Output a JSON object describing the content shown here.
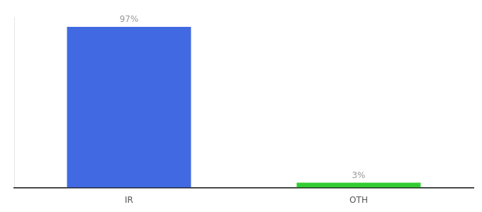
{
  "chart_data": {
    "type": "bar",
    "categories": [
      "IR",
      "OTH"
    ],
    "values": [
      97,
      3
    ],
    "value_labels": [
      "97%",
      "3%"
    ],
    "data_labels": true,
    "colors": [
      "#4169e1",
      "#33cc33"
    ],
    "ylim": [
      0,
      103
    ],
    "grid": false,
    "tick_labels": "x"
  }
}
